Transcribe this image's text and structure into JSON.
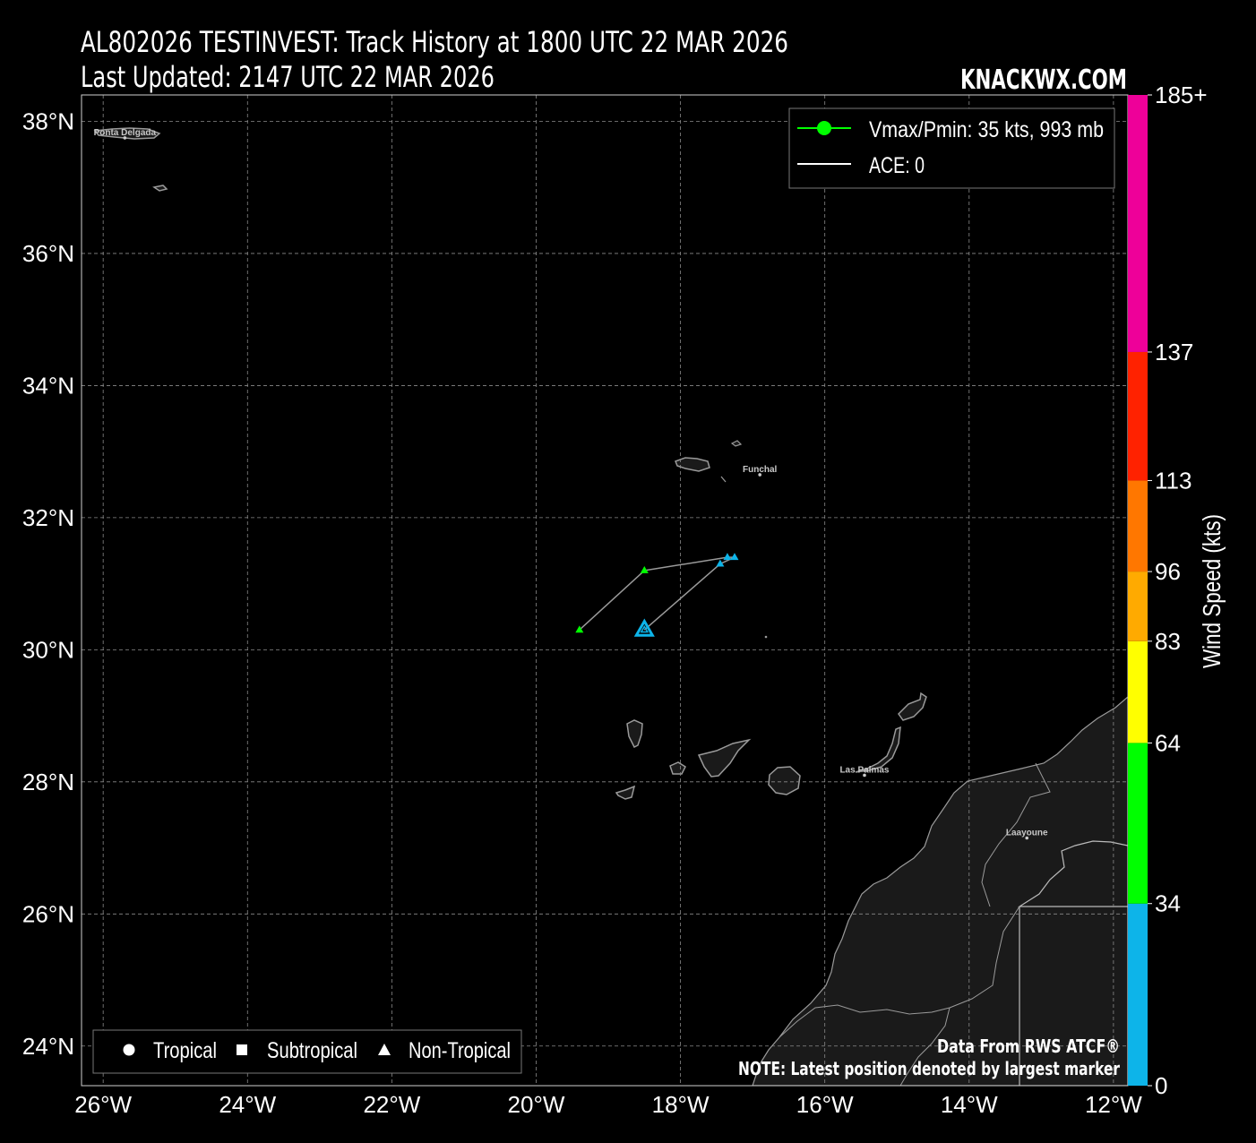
{
  "header": {
    "title_line1": "AL802026 TESTINVEST: Track History at 1800 UTC 22 MAR 2026",
    "title_line2": "Last Updated: 2147 UTC 22 MAR 2026",
    "brand": "KNACKWX.COM"
  },
  "map": {
    "lon_range": [
      -26.3,
      -11.8
    ],
    "lat_range": [
      23.4,
      38.4
    ],
    "lon_ticks": [
      {
        "value": -26,
        "label": "26°W"
      },
      {
        "value": -24,
        "label": "24°W"
      },
      {
        "value": -22,
        "label": "22°W"
      },
      {
        "value": -20,
        "label": "20°W"
      },
      {
        "value": -18,
        "label": "18°W"
      },
      {
        "value": -16,
        "label": "16°W"
      },
      {
        "value": -14,
        "label": "14°W"
      },
      {
        "value": -12,
        "label": "12°W"
      }
    ],
    "lat_ticks": [
      {
        "value": 38,
        "label": "38°N"
      },
      {
        "value": 36,
        "label": "36°N"
      },
      {
        "value": 34,
        "label": "34°N"
      },
      {
        "value": 32,
        "label": "32°N"
      },
      {
        "value": 30,
        "label": "30°N"
      },
      {
        "value": 28,
        "label": "28°N"
      },
      {
        "value": 26,
        "label": "26°N"
      },
      {
        "value": 24,
        "label": "24°N"
      }
    ],
    "grid": true,
    "colors": {
      "background": "#000000",
      "land": "#1a1a1a",
      "coast": "#9a9a9a",
      "grid": "#8a8a8a",
      "track": "#9a9a9a"
    },
    "cities": [
      {
        "name": "Ponta Delgada",
        "lon": -25.7,
        "lat": 37.75
      },
      {
        "name": "Funchal",
        "lon": -16.9,
        "lat": 32.65
      },
      {
        "name": "Las Palmas",
        "lon": -15.45,
        "lat": 28.1
      },
      {
        "name": "Laayoune",
        "lon": -13.2,
        "lat": 27.15
      }
    ]
  },
  "chart_data": {
    "type": "scatter",
    "x_axis": "longitude",
    "y_axis": "latitude",
    "track": [
      {
        "lon": -19.4,
        "lat": 30.3,
        "wind": 35,
        "type": "Non-Tropical",
        "color": "#00ff00"
      },
      {
        "lon": -18.5,
        "lat": 31.2,
        "wind": 35,
        "type": "Non-Tropical",
        "color": "#00ff00"
      },
      {
        "lon": -17.35,
        "lat": 31.4,
        "wind": 30,
        "type": "Non-Tropical",
        "color": "#0db4e9"
      },
      {
        "lon": -17.25,
        "lat": 31.4,
        "wind": 30,
        "type": "Non-Tropical",
        "color": "#0db4e9"
      },
      {
        "lon": -17.45,
        "lat": 31.3,
        "wind": 30,
        "type": "Non-Tropical",
        "color": "#0db4e9"
      },
      {
        "lon": -18.5,
        "lat": 30.3,
        "wind": 30,
        "type": "Non-Tropical",
        "color": "#0db4e9",
        "latest": true
      }
    ]
  },
  "legend": {
    "vmax_label": "Vmax/Pmin: 35 kts, 993 mb",
    "vmax_color": "#00ff00",
    "ace_label": "ACE: 0",
    "storm_types": [
      {
        "symbol": "circle",
        "label": "Tropical"
      },
      {
        "symbol": "square",
        "label": "Subtropical"
      },
      {
        "symbol": "triangle",
        "label": "Non-Tropical"
      }
    ]
  },
  "notes": {
    "source": "Data From RWS ATCF®",
    "note": "NOTE: Latest position denoted by largest marker"
  },
  "colorbar": {
    "label": "Wind Speed (kts)",
    "bands": [
      {
        "from": 0,
        "to": 34,
        "color": "#0db4e9"
      },
      {
        "from": 34,
        "to": 64,
        "color": "#00ff00"
      },
      {
        "from": 64,
        "to": 83,
        "color": "#ffff00"
      },
      {
        "from": 83,
        "to": 96,
        "color": "#ffaa00"
      },
      {
        "from": 96,
        "to": 113,
        "color": "#ff7700"
      },
      {
        "from": 113,
        "to": 137,
        "color": "#ff2200"
      },
      {
        "from": 137,
        "to": 185,
        "color": "#ee0099"
      }
    ],
    "ticks": [
      "0",
      "34",
      "64",
      "83",
      "96",
      "113",
      "137",
      "185+"
    ]
  }
}
